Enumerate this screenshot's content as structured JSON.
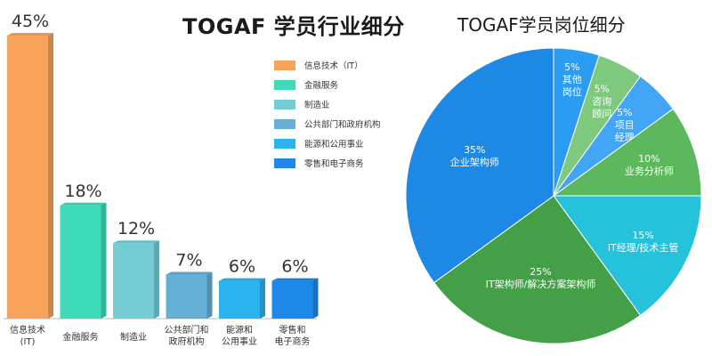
{
  "chart_data": [
    {
      "type": "bar",
      "title": "TOGAF 学员行业细分",
      "categories": [
        "信息技术\n(IT)",
        "金融服务",
        "制造业",
        "公共部门和\n政府机构",
        "能源和\n公用事业",
        "零售和\n电子商务"
      ],
      "values": [
        45,
        18,
        12,
        7,
        6,
        6
      ],
      "value_labels": [
        "45%",
        "18%",
        "12%",
        "7%",
        "6%",
        "6%"
      ],
      "colors": [
        "#f7a35c",
        "#3ddbb8",
        "#74cdd5",
        "#63afd6",
        "#2bb3ee",
        "#1e88e8"
      ],
      "ylim": [
        0,
        45
      ],
      "legend": {
        "position": "top-right",
        "entries": [
          "信息技术（IT）",
          "金融服务",
          "制造业",
          "公共部门和政府机构",
          "能源和公用事业",
          "零售和电子商务"
        ]
      }
    },
    {
      "type": "pie",
      "title": "TOGAF学员岗位细分",
      "labels": [
        "其他\n岗位",
        "咨询\n顾问",
        "项目\n经理",
        "业务分析师",
        "IT经理/技术主管",
        "IT架构师/解决方案架构师",
        "企业架构师"
      ],
      "values": [
        5,
        5,
        5,
        10,
        15,
        25,
        35
      ],
      "value_labels": [
        "5%",
        "5%",
        "5%",
        "10%",
        "15%",
        "25%",
        "35%"
      ],
      "colors": [
        "#2b9cf2",
        "#7fc97f",
        "#42a5f5",
        "#5cb85c",
        "#26c2dc",
        "#43a047",
        "#1e88e5"
      ]
    }
  ]
}
